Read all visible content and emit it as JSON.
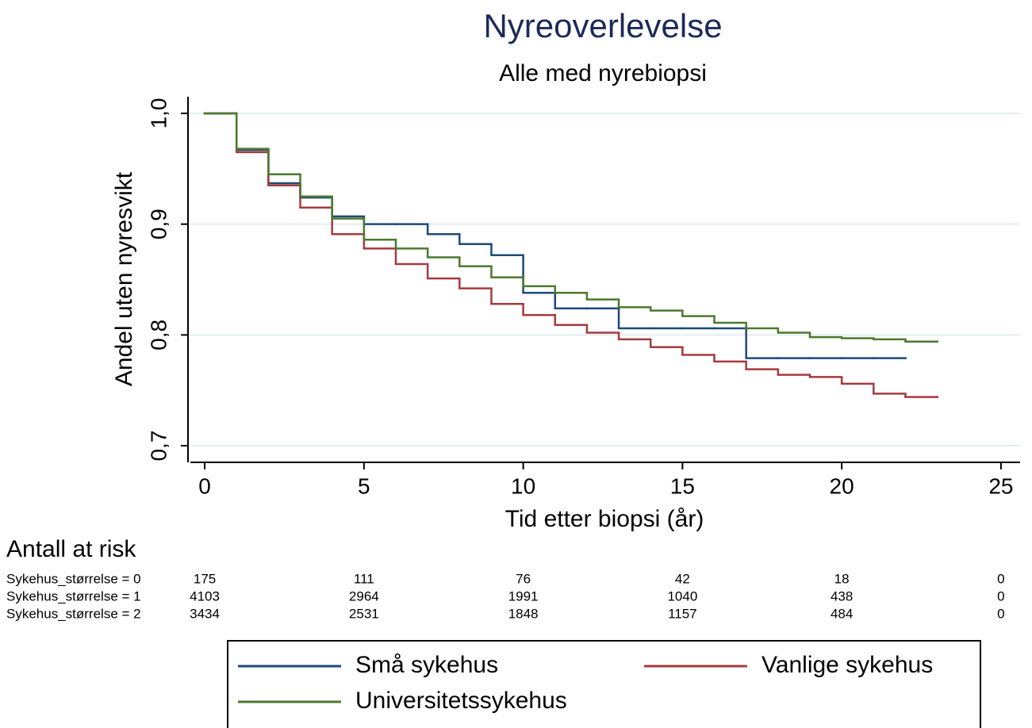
{
  "chart_data": {
    "type": "step",
    "title": "Nyreoverlevelse",
    "subtitle": "Alle med nyrebiopsi",
    "x_label": "Tid etter biopsi (år)",
    "y_label": "Andel uten nyresvikt",
    "xlim": [
      -0.45,
      25.6
    ],
    "ylim": [
      0.685,
      1.015
    ],
    "xticks": [
      0,
      5,
      10,
      15,
      20,
      25
    ],
    "yticks": [
      {
        "value": 0.7,
        "label": "0,7"
      },
      {
        "value": 0.8,
        "label": "0,8"
      },
      {
        "value": 0.9,
        "label": "0,9"
      },
      {
        "value": 1.0,
        "label": "1,0"
      }
    ],
    "grid": true,
    "series": [
      {
        "name": "Små sykehus",
        "color": "#1d4a78",
        "x": [
          0,
          1,
          2,
          3,
          4,
          5,
          6,
          7,
          8,
          9,
          10,
          11,
          12,
          13,
          14,
          15,
          16,
          17,
          18,
          19,
          20,
          21,
          22
        ],
        "values": [
          1.0,
          0.967,
          0.937,
          0.924,
          0.907,
          0.9,
          0.9,
          0.891,
          0.882,
          0.872,
          0.838,
          0.824,
          0.824,
          0.806,
          0.806,
          0.806,
          0.806,
          0.779,
          0.779,
          0.779,
          0.779,
          0.779,
          0.779
        ]
      },
      {
        "name": "Vanlige sykehus",
        "color": "#a63a3f",
        "x": [
          0,
          1,
          2,
          3,
          4,
          5,
          6,
          7,
          8,
          9,
          10,
          11,
          12,
          13,
          14,
          15,
          16,
          17,
          18,
          19,
          20,
          21,
          22,
          23
        ],
        "values": [
          1.0,
          0.965,
          0.935,
          0.915,
          0.891,
          0.878,
          0.864,
          0.851,
          0.842,
          0.828,
          0.818,
          0.809,
          0.802,
          0.796,
          0.789,
          0.782,
          0.776,
          0.769,
          0.764,
          0.762,
          0.756,
          0.747,
          0.744,
          0.744
        ]
      },
      {
        "name": "Universitetssykehus",
        "color": "#4b7a2e",
        "x": [
          0,
          1,
          2,
          3,
          4,
          5,
          6,
          7,
          8,
          9,
          10,
          11,
          12,
          13,
          14,
          15,
          16,
          17,
          18,
          19,
          20,
          21,
          22,
          23
        ],
        "values": [
          1.0,
          0.968,
          0.945,
          0.925,
          0.905,
          0.886,
          0.878,
          0.87,
          0.862,
          0.852,
          0.844,
          0.838,
          0.832,
          0.825,
          0.822,
          0.817,
          0.811,
          0.806,
          0.802,
          0.798,
          0.797,
          0.796,
          0.794,
          0.794
        ]
      }
    ],
    "risk_table": {
      "title": "Antall at risk",
      "rows": [
        {
          "label": "Sykehus_størrelse = 0",
          "counts": [
            "175",
            "111",
            "76",
            "42",
            "18",
            "0"
          ]
        },
        {
          "label": "Sykehus_størrelse = 1",
          "counts": [
            "4103",
            "2964",
            "1991",
            "1040",
            "438",
            "0"
          ]
        },
        {
          "label": "Sykehus_størrelse = 2",
          "counts": [
            "3434",
            "2531",
            "1848",
            "1157",
            "484",
            "0"
          ]
        }
      ]
    }
  }
}
